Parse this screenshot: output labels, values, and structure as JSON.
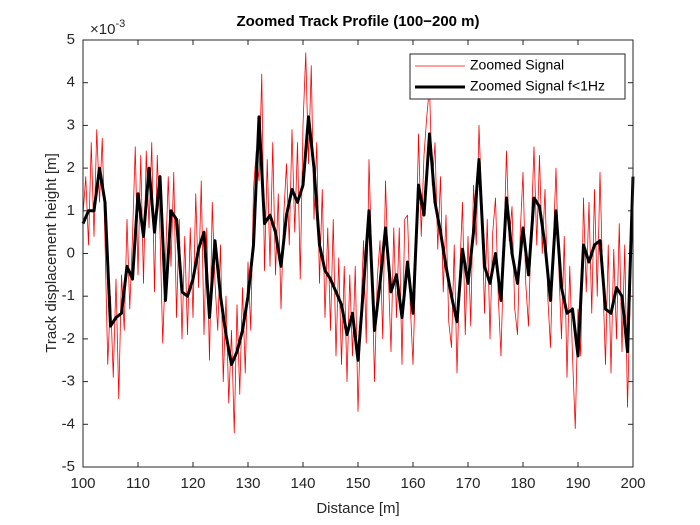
{
  "chart_data": {
    "type": "line",
    "title": "Zoomed Track Profile (100−200 m)",
    "xlabel": "Distance [m]",
    "ylabel": "Track displacement height [m]",
    "y_exponent": {
      "base": "×10",
      "power": "-3"
    },
    "xlim": [
      100,
      200
    ],
    "xticks": [
      100,
      110,
      120,
      130,
      140,
      150,
      160,
      170,
      180,
      190,
      200
    ],
    "ylim": [
      -5,
      5
    ],
    "yticks": [
      -5,
      -4,
      -3,
      -2,
      -1,
      0,
      1,
      2,
      3,
      4,
      5
    ],
    "grid": false,
    "legend": "top-right",
    "series": [
      {
        "name": "Zoomed Signal",
        "color": "#ff0000",
        "width": 0.8,
        "x": [
          100,
          100.5,
          101,
          101.5,
          102,
          102.5,
          103,
          103.5,
          104,
          104.5,
          105,
          105.5,
          106,
          106.5,
          107,
          107.5,
          108,
          108.5,
          109,
          109.5,
          110,
          110.5,
          111,
          111.5,
          112,
          112.5,
          113,
          113.5,
          114,
          114.5,
          115,
          115.5,
          116,
          116.5,
          117,
          117.5,
          118,
          118.5,
          119,
          119.5,
          120,
          120.5,
          121,
          121.5,
          122,
          122.5,
          123,
          123.5,
          124,
          124.5,
          125,
          125.5,
          126,
          126.5,
          127,
          127.5,
          128,
          128.5,
          129,
          129.5,
          130,
          130.5,
          131,
          131.5,
          132,
          132.5,
          133,
          133.5,
          134,
          134.5,
          135,
          135.5,
          136,
          136.5,
          137,
          137.5,
          138,
          138.5,
          139,
          139.5,
          140,
          140.5,
          141,
          141.5,
          142,
          142.5,
          143,
          143.5,
          144,
          144.5,
          145,
          145.5,
          146,
          146.5,
          147,
          147.5,
          148,
          148.5,
          149,
          149.5,
          150,
          150.5,
          151,
          151.5,
          152,
          152.5,
          153,
          153.5,
          154,
          154.5,
          155,
          155.5,
          156,
          156.5,
          157,
          157.5,
          158,
          158.5,
          159,
          159.5,
          160,
          160.5,
          161,
          161.5,
          162,
          162.5,
          163,
          163.5,
          164,
          164.5,
          165,
          165.5,
          166,
          166.5,
          167,
          167.5,
          168,
          168.5,
          169,
          169.5,
          170,
          170.5,
          171,
          171.5,
          172,
          172.5,
          173,
          173.5,
          174,
          174.5,
          175,
          175.5,
          176,
          176.5,
          177,
          177.5,
          178,
          178.5,
          179,
          179.5,
          180,
          180.5,
          181,
          181.5,
          182,
          182.5,
          183,
          183.5,
          184,
          184.5,
          185,
          185.5,
          186,
          186.5,
          187,
          187.5,
          188,
          188.5,
          189,
          189.5,
          190,
          190.5,
          191,
          191.5,
          192,
          192.5,
          193,
          193.5,
          194,
          194.5,
          195,
          195.5,
          196,
          196.5,
          197,
          197.5,
          198,
          198.5,
          199,
          199.5,
          200
        ],
        "values": [
          0.9,
          1.8,
          0.2,
          2.6,
          0.4,
          2.9,
          1.2,
          2.7,
          0.3,
          -2.6,
          -1.0,
          -2.9,
          -0.6,
          -3.4,
          -0.5,
          -1.8,
          0.8,
          -1.3,
          0.4,
          2.5,
          -0.5,
          2.3,
          -0.7,
          2.4,
          0.6,
          2.6,
          -0.9,
          2.3,
          0.5,
          -2.1,
          -0.2,
          1.8,
          -0.3,
          1.9,
          -1.5,
          0.8,
          -2.0,
          0.4,
          -1.9,
          0.6,
          -1.5,
          1.4,
          -0.8,
          1.7,
          -1.9,
          0.6,
          -2.5,
          1.2,
          -0.7,
          -1.8,
          0.2,
          -3.0,
          -1.0,
          -3.5,
          -1.8,
          -4.2,
          -1.2,
          -3.3,
          -0.8,
          -2.8,
          -0.2,
          -1.8,
          1.5,
          2.4,
          1.7,
          4.2,
          -0.4,
          2.2,
          -0.3,
          2.6,
          -0.5,
          1.4,
          -1.3,
          0.9,
          2.1,
          0.2,
          2.9,
          0.5,
          2.6,
          -0.6,
          3.0,
          4.7,
          2.1,
          4.4,
          0.8,
          2.6,
          -0.7,
          1.5,
          -1.5,
          0.6,
          -1.8,
          0.8,
          -2.4,
          -0.1,
          -2.6,
          -0.3,
          -3.0,
          -0.5,
          -2.4,
          -0.3,
          -3.7,
          -1.5,
          0.3,
          -2.1,
          2.2,
          -0.2,
          -3.0,
          -0.6,
          0.3,
          -2.0,
          1.7,
          -0.4,
          -2.3,
          0.6,
          -1.5,
          0.6,
          -2.6,
          0.8,
          0.9,
          -1.2,
          -2.6,
          -0.3,
          2.8,
          0.4,
          2.3,
          3.2,
          3.9,
          1.6,
          2.6,
          0.1,
          1.8,
          -0.9,
          0.9,
          -1.6,
          -2.2,
          0.2,
          -2.8,
          -0.4,
          1.2,
          -1.9,
          0.4,
          -1.7,
          1.6,
          0.2,
          3.0,
          1.1,
          -1.4,
          0.8,
          -2.0,
          0.5,
          1.3,
          -1.0,
          -2.4,
          0.1,
          2.4,
          0.3,
          1.1,
          -1.3,
          -1.9,
          0.5,
          1.9,
          -0.7,
          -1.7,
          0.6,
          2.5,
          0.2,
          2.3,
          0.0,
          1.5,
          -1.0,
          -2.2,
          0.2,
          2.0,
          -0.3,
          -2.0,
          0.4,
          -2.9,
          -0.3,
          -2.4,
          -4.1,
          -1.3,
          -2.4,
          1.3,
          -0.9,
          1.2,
          -1.4,
          1.5,
          -1.0,
          1.9,
          -0.6,
          -2.6,
          0.2,
          -2.8,
          0.1,
          -2.0,
          0.7,
          -2.3,
          0.2,
          -3.6,
          -1.0,
          2.0
        ]
      },
      {
        "name": "Zoomed Signal f<1Hz",
        "color": "#000000",
        "width": 3,
        "x": [
          100,
          101,
          102,
          103,
          104,
          105,
          106,
          107,
          108,
          109,
          110,
          111,
          112,
          113,
          114,
          115,
          116,
          117,
          118,
          119,
          120,
          121,
          122,
          123,
          124,
          125,
          126,
          127,
          128,
          129,
          130,
          131,
          132,
          133,
          134,
          135,
          136,
          137,
          138,
          139,
          140,
          141,
          142,
          143,
          144,
          145,
          146,
          147,
          148,
          149,
          150,
          151,
          152,
          153,
          154,
          155,
          156,
          157,
          158,
          159,
          160,
          161,
          162,
          163,
          164,
          165,
          166,
          167,
          168,
          169,
          170,
          171,
          172,
          173,
          174,
          175,
          176,
          177,
          178,
          179,
          180,
          181,
          182,
          183,
          184,
          185,
          186,
          187,
          188,
          189,
          190,
          191,
          192,
          193,
          194,
          195,
          196,
          197,
          198,
          199,
          200
        ],
        "values": [
          0.7,
          1.0,
          1.0,
          2.0,
          1.2,
          -1.7,
          -1.5,
          -1.4,
          -0.3,
          -0.6,
          1.4,
          0.4,
          2.0,
          0.5,
          1.8,
          -1.1,
          1.0,
          0.8,
          -0.9,
          -1.0,
          -0.6,
          0.1,
          0.5,
          -1.5,
          0.3,
          -1.0,
          -1.9,
          -2.6,
          -2.3,
          -1.8,
          -1.0,
          0.2,
          3.2,
          0.7,
          0.9,
          0.5,
          -0.3,
          0.9,
          1.5,
          1.2,
          1.6,
          3.2,
          2.0,
          0.2,
          -0.4,
          -0.6,
          -0.9,
          -1.2,
          -1.9,
          -1.4,
          -2.5,
          -0.8,
          1.0,
          -1.8,
          -0.7,
          0.6,
          -0.9,
          -0.5,
          -1.5,
          -0.2,
          -1.4,
          1.6,
          0.9,
          2.8,
          1.2,
          0.5,
          -0.3,
          -1.0,
          -1.6,
          0.1,
          -0.7,
          0.5,
          2.2,
          -0.3,
          -0.7,
          0.0,
          -1.1,
          1.3,
          0.0,
          -0.7,
          0.6,
          -0.5,
          1.3,
          1.1,
          0.2,
          -1.1,
          1.0,
          -0.8,
          -1.4,
          -1.3,
          -2.4,
          0.2,
          -0.2,
          0.2,
          0.3,
          -1.3,
          -1.4,
          -0.8,
          -1.0,
          -2.3,
          1.8
        ]
      }
    ]
  }
}
